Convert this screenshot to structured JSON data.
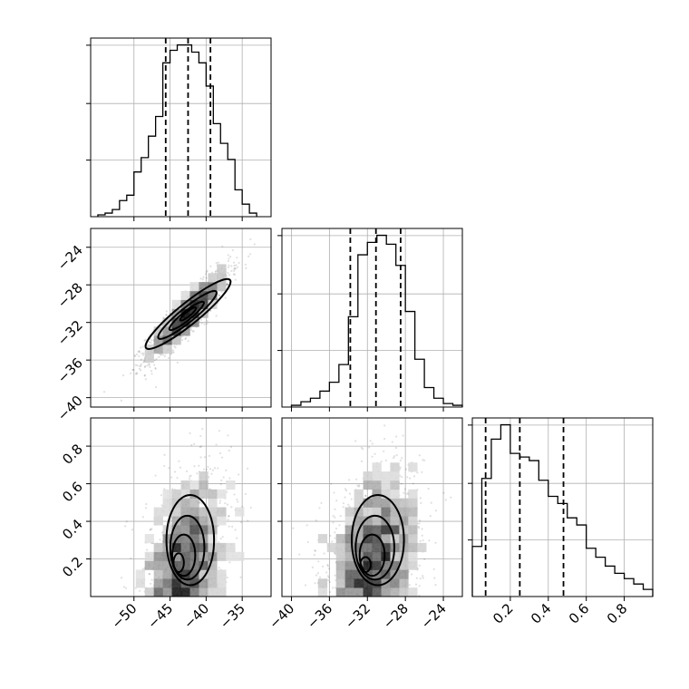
{
  "chart_data": {
    "type": "corner",
    "parameters": [
      {
        "range": [
          -56,
          -31
        ],
        "ticks": [
          -50,
          -45,
          -40,
          -35
        ],
        "tick_labels": [
          "−50",
          "−45",
          "−40",
          "−35"
        ]
      },
      {
        "range": [
          -41,
          -22
        ],
        "ticks": [
          -40,
          -36,
          -32,
          -28,
          -24
        ],
        "tick_labels": [
          "−40",
          "−36",
          "−32",
          "−28",
          "−24"
        ]
      },
      {
        "range": [
          0.0,
          0.95
        ],
        "ticks": [
          0.2,
          0.4,
          0.6,
          0.8
        ],
        "tick_labels": [
          "0.2",
          "0.4",
          "0.6",
          "0.8"
        ]
      }
    ],
    "histograms": [
      {
        "bin_edges": [
          -55,
          -54,
          -53,
          -52,
          -51,
          -50,
          -49,
          -48,
          -47,
          -46,
          -45,
          -44,
          -43,
          -42,
          -41,
          -40,
          -39,
          -38,
          -37,
          -36,
          -35,
          -34,
          -33
        ],
        "counts": [
          0.01,
          0.02,
          0.04,
          0.09,
          0.12,
          0.25,
          0.33,
          0.45,
          0.56,
          0.86,
          0.93,
          0.96,
          0.96,
          0.92,
          0.86,
          0.73,
          0.52,
          0.41,
          0.32,
          0.15,
          0.07,
          0.02
        ],
        "quantiles": [
          -45.6,
          -42.5,
          -39.4
        ]
      },
      {
        "bin_edges": [
          -40,
          -39,
          -38,
          -37,
          -36,
          -35,
          -34,
          -33,
          -32,
          -31,
          -30,
          -29,
          -28,
          -27,
          -26,
          -25,
          -24,
          -23,
          -22
        ],
        "counts": [
          0.01,
          0.03,
          0.05,
          0.09,
          0.14,
          0.24,
          0.51,
          0.86,
          0.93,
          0.97,
          0.92,
          0.8,
          0.54,
          0.27,
          0.11,
          0.05,
          0.02,
          0.01
        ],
        "quantiles": [
          -33.8,
          -31.1,
          -28.5
        ]
      },
      {
        "bin_edges": [
          0.0,
          0.05,
          0.1,
          0.15,
          0.2,
          0.25,
          0.3,
          0.35,
          0.4,
          0.45,
          0.5,
          0.55,
          0.6,
          0.65,
          0.7,
          0.75,
          0.8,
          0.85,
          0.9,
          0.95
        ],
        "counts": [
          0.28,
          0.66,
          0.88,
          0.96,
          0.8,
          0.78,
          0.76,
          0.65,
          0.56,
          0.52,
          0.44,
          0.4,
          0.27,
          0.22,
          0.17,
          0.13,
          0.1,
          0.07,
          0.04
        ],
        "quantiles": [
          0.07,
          0.25,
          0.48
        ]
      }
    ],
    "pairs": [
      {
        "x_param": 0,
        "y_param": 1,
        "center": [
          -42.5,
          -31.1
        ],
        "sd": [
          2.5,
          2.1
        ],
        "correlation": 0.9,
        "contours": [
          {
            "cx": -42.5,
            "cy": -31.1,
            "rx": 9.6,
            "ry": 1.55,
            "angle_deg": 39
          },
          {
            "cx": -42.6,
            "cy": -31.2,
            "rx": 6.6,
            "ry": 1.05,
            "angle_deg": 39
          },
          {
            "cx": -42.7,
            "cy": -31.3,
            "rx": 3.9,
            "ry": 0.65,
            "angle_deg": 39
          },
          {
            "cx": -42.5,
            "cy": -31.1,
            "rx": 1.8,
            "ry": 0.35,
            "angle_deg": 39
          }
        ]
      },
      {
        "x_param": 0,
        "y_param": 2,
        "center": [
          -42.5,
          0.22
        ],
        "sd": [
          2.5,
          0.18
        ],
        "correlation": 0.3,
        "contours": [
          {
            "cx": -42.2,
            "cy": 0.3,
            "rx": 6.0,
            "ry": 0.24,
            "angle_deg": 0
          },
          {
            "cx": -42.6,
            "cy": 0.26,
            "rx": 4.3,
            "ry": 0.17,
            "angle_deg": 0
          },
          {
            "cx": -43.1,
            "cy": 0.22,
            "rx": 2.9,
            "ry": 0.11,
            "angle_deg": 0
          },
          {
            "cx": -43.8,
            "cy": 0.18,
            "rx": 1.3,
            "ry": 0.05,
            "angle_deg": 0
          }
        ]
      },
      {
        "x_param": 1,
        "y_param": 2,
        "center": [
          -31.1,
          0.22
        ],
        "sd": [
          2.1,
          0.18
        ],
        "correlation": 0.3,
        "contours": [
          {
            "cx": -30.9,
            "cy": 0.3,
            "rx": 5.0,
            "ry": 0.24,
            "angle_deg": 0
          },
          {
            "cx": -31.2,
            "cy": 0.26,
            "rx": 3.7,
            "ry": 0.17,
            "angle_deg": 0
          },
          {
            "cx": -31.5,
            "cy": 0.22,
            "rx": 2.4,
            "ry": 0.11,
            "angle_deg": 0
          },
          {
            "cx": -32.2,
            "cy": 0.17,
            "rx": 1.0,
            "ry": 0.04,
            "angle_deg": 0
          }
        ]
      }
    ],
    "grid": true
  }
}
